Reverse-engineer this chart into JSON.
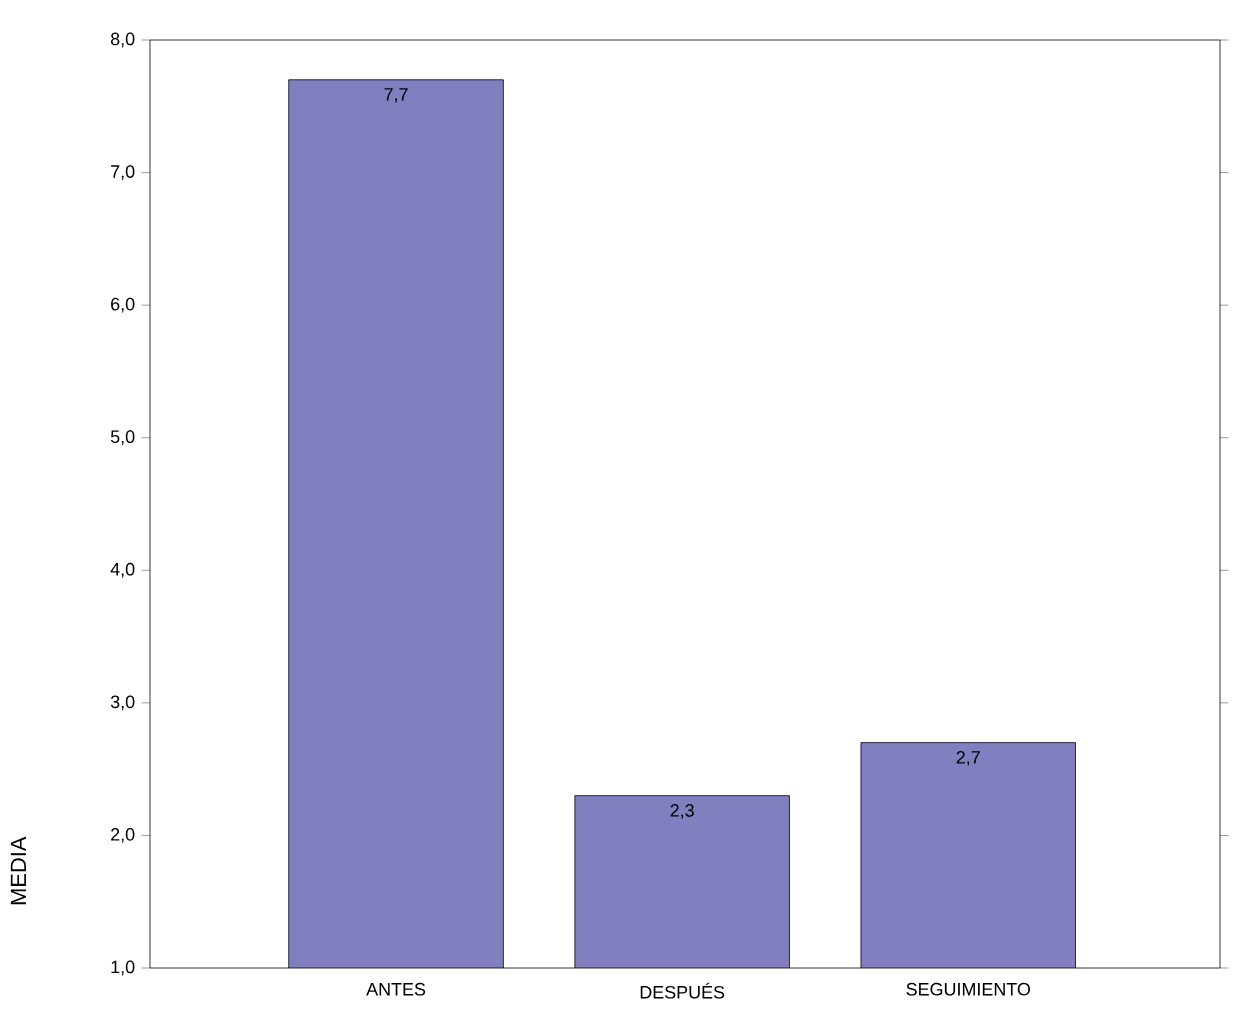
{
  "chart_data": {
    "type": "bar",
    "ylabel": "MEDIA",
    "categories": [
      "ANTES",
      "DESPUÉS",
      "SEGUIMIENTO"
    ],
    "values": [
      7.7,
      2.3,
      2.7
    ],
    "value_labels": [
      "7,7",
      "2,3",
      "2,7"
    ],
    "color": "#8080c0",
    "ylim": [
      1,
      8
    ],
    "yticks": [
      {
        "value": 1,
        "label": "1,0"
      },
      {
        "value": 2,
        "label": "2,0"
      },
      {
        "value": 3,
        "label": "3,0"
      },
      {
        "value": 4,
        "label": "4,0"
      },
      {
        "value": 5,
        "label": "5,0"
      },
      {
        "value": 6,
        "label": "6,0"
      },
      {
        "value": 7,
        "label": "7,0"
      },
      {
        "value": 8,
        "label": "8,0"
      }
    ]
  }
}
